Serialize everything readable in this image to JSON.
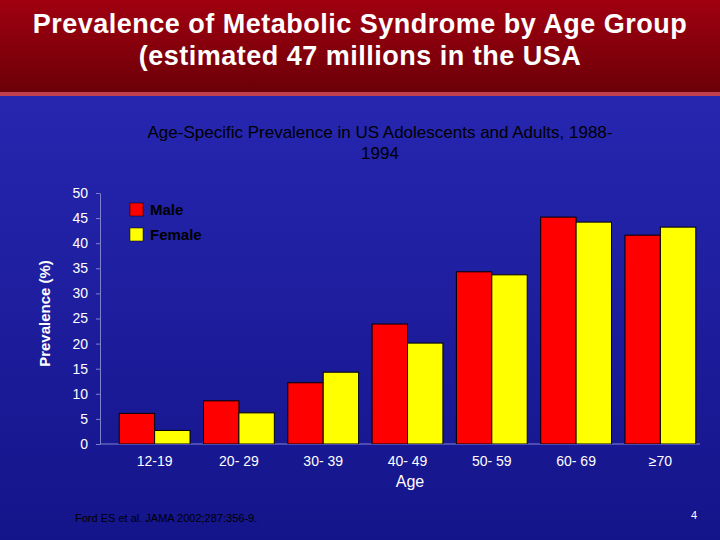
{
  "chart_data": {
    "type": "bar",
    "title": "Prevalence of Metabolic Syndrome by Age Group (estimated 47 millions in the USA",
    "subtitle": "Age-Specific Prevalence in US Adolescents and Adults, 1988-1994",
    "x_label": "Age",
    "y_label": "Prevalence (%)",
    "categories": [
      "12-19",
      "20- 29",
      "30- 39",
      "40- 49",
      "50- 59",
      "60- 69",
      "≥70"
    ],
    "series": [
      {
        "name": "Male",
        "color": "#ff0000",
        "values": [
          6.1,
          8.6,
          12.2,
          23.9,
          34.3,
          45.2,
          41.6
        ]
      },
      {
        "name": "Female",
        "color": "#ffff00",
        "values": [
          2.7,
          6.2,
          14.3,
          20.1,
          33.7,
          44.2,
          43.2
        ]
      }
    ],
    "ylim": [
      0,
      50
    ],
    "yticks": [
      0,
      5,
      10,
      15,
      20,
      25,
      30,
      35,
      40,
      45,
      50
    ],
    "legend": "upper left",
    "annotations": [
      "Ford ES et al. JAMA 2002;287:356-9.",
      "4"
    ]
  }
}
